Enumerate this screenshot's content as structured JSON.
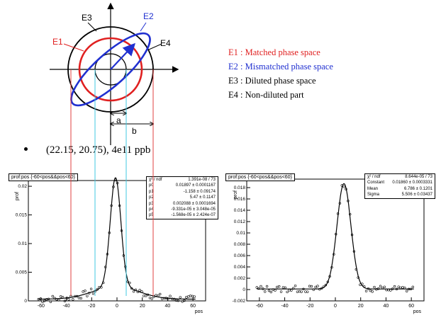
{
  "diagram": {
    "ellipse_labels": {
      "e1": "E1",
      "e2": "E2",
      "e3": "E3",
      "e4": "E4"
    },
    "dimension_labels": {
      "a": "a",
      "b": "b"
    },
    "colors": {
      "matched": "#e02020",
      "mismatched": "#2030d0",
      "diluted": "#000000",
      "guide_red": "#e04040",
      "guide_cyan": "#40c8e0"
    }
  },
  "legend": [
    {
      "text": "E1 : Matched phase space",
      "color": "#e02020"
    },
    {
      "text": "E2 : Mismatched phase space",
      "color": "#2030d0"
    },
    {
      "text": "E3 : Diluted phase space",
      "color": "#000000"
    },
    {
      "text": "E4 : Non-diluted part",
      "color": "#000000"
    }
  ],
  "bullet": {
    "text": "(22.15, 20.75), 4e11 ppb"
  },
  "left_plot": {
    "title": "prof:pos {-60<pos&&pos<60}",
    "x_label": "pos",
    "y_label": "prof",
    "x_ticks": [
      "-60",
      "-40",
      "-20",
      "0",
      "20",
      "40",
      "60"
    ],
    "y_ticks": [
      "0",
      "0.005",
      "0.01",
      "0.015",
      "0.02"
    ],
    "stats": [
      {
        "k": "χ² / ndf",
        "v": "1.391e-08 / 73"
      },
      {
        "k": "p0",
        "v": "0.01897 ± 0.0001167"
      },
      {
        "k": "p1",
        "v": "-1.158 ± 0.09174"
      },
      {
        "k": "p2",
        "v": "5.47 ± 0.1147"
      },
      {
        "k": "p3",
        "v": "0.002088 ± 0.0001694"
      },
      {
        "k": "p4",
        "v": "-9.331e-05 ± 3.048e-05"
      },
      {
        "k": "p5",
        "v": "-1.568e-05 ± 2.424e-07"
      }
    ]
  },
  "right_plot": {
    "title": "prof:pos {-60<pos&&pos<60}",
    "x_label": "pos",
    "y_label": "prof",
    "x_ticks": [
      "-60",
      "-40",
      "-20",
      "0",
      "20",
      "40",
      "60"
    ],
    "y_ticks": [
      "-0.002",
      "0",
      "0.002",
      "0.004",
      "0.006",
      "0.008",
      "0.01",
      "0.012",
      "0.014",
      "0.016",
      "0.018"
    ],
    "stats": [
      {
        "k": "χ² / ndf",
        "v": "8.644e-05 / 73"
      },
      {
        "k": "Constant",
        "v": "0.01860 ± 0.0003331"
      },
      {
        "k": "Mean",
        "v": "6.786 ± 0.1201"
      },
      {
        "k": "Sigma",
        "v": "5.506 ± 0.03437"
      }
    ]
  }
}
